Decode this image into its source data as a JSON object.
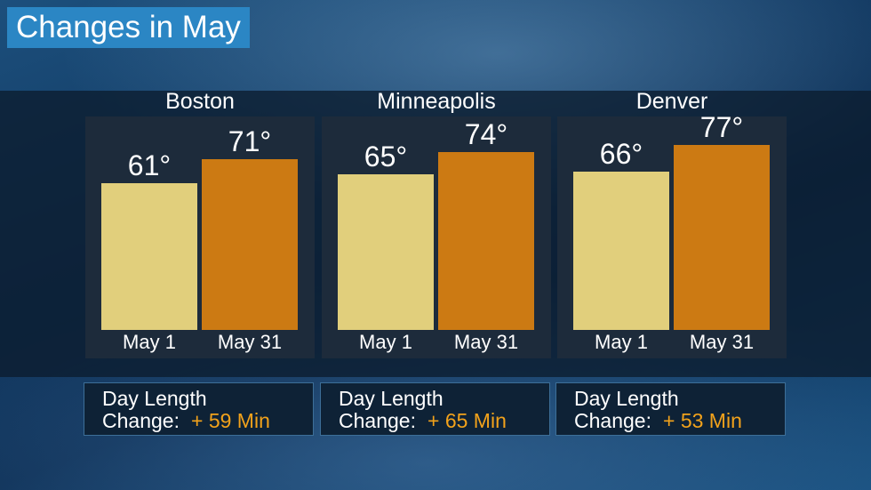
{
  "title": "Changes in May",
  "chart_data": {
    "type": "bar",
    "title": "Changes in May",
    "ylim": [
      0,
      80
    ],
    "categories": [
      "May 1",
      "May 31"
    ],
    "groups": [
      {
        "name": "Boston",
        "values": [
          61,
          71
        ],
        "labels": [
          "61°",
          "71°"
        ],
        "day_length_change": "+ 59 Min"
      },
      {
        "name": "Minneapolis",
        "values": [
          65,
          74
        ],
        "labels": [
          "65°",
          "74°"
        ],
        "day_length_change": "+ 65 Min"
      },
      {
        "name": "Denver",
        "values": [
          66,
          77
        ],
        "labels": [
          "66°",
          "77°"
        ],
        "day_length_change": "+ 53 Min"
      }
    ],
    "colors": {
      "May 1": "#e1cf7c",
      "May 31": "#cc7a13"
    }
  },
  "info": {
    "line1": "Day Length",
    "line2": "Change:"
  }
}
